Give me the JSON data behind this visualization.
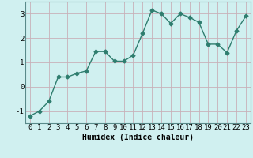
{
  "x": [
    0,
    1,
    2,
    3,
    4,
    5,
    6,
    7,
    8,
    9,
    10,
    11,
    12,
    13,
    14,
    15,
    16,
    17,
    18,
    19,
    20,
    21,
    22,
    23
  ],
  "y": [
    -1.2,
    -1.0,
    -0.6,
    0.4,
    0.4,
    0.55,
    0.65,
    1.45,
    1.45,
    1.05,
    1.05,
    1.3,
    2.2,
    3.15,
    3.0,
    2.6,
    3.0,
    2.85,
    2.65,
    1.75,
    1.75,
    1.4,
    2.3,
    2.9
  ],
  "line_color": "#2e7d6e",
  "marker": "D",
  "marker_size": 2.5,
  "bg_color": "#d0f0f0",
  "grid_color": "#c8b0b8",
  "axis_bg": "#d0f0f0",
  "xlabel": "Humidex (Indice chaleur)",
  "xlim_left": -0.5,
  "xlim_right": 23.5,
  "ylim": [
    -1.5,
    3.5
  ],
  "yticks": [
    -1,
    0,
    1,
    2,
    3
  ],
  "xticks": [
    0,
    1,
    2,
    3,
    4,
    5,
    6,
    7,
    8,
    9,
    10,
    11,
    12,
    13,
    14,
    15,
    16,
    17,
    18,
    19,
    20,
    21,
    22,
    23
  ],
  "xlabel_fontsize": 7,
  "tick_fontsize": 6.5,
  "line_width": 1.0
}
